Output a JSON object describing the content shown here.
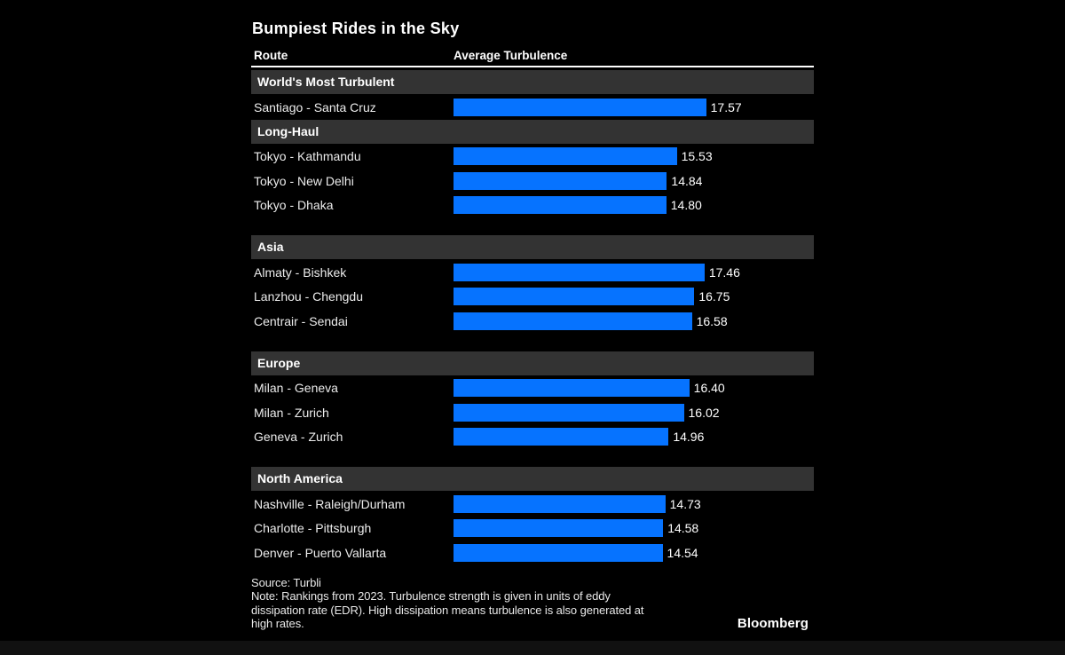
{
  "colors": {
    "background": "#000000",
    "bar": "#0673ff",
    "section_band": "#333333",
    "divider": "#ffffff",
    "text": "#ffffff"
  },
  "chart_data": {
    "type": "bar",
    "orientation": "horizontal",
    "title": "Bumpiest Rides in the Sky",
    "col_route": "Route",
    "col_value": "Average Turbulence",
    "xlabel": "Average Turbulence",
    "ylabel": "Route",
    "xlim": [
      0,
      25
    ],
    "grid": false,
    "legend": "none",
    "bar_color": "#0673ff",
    "sections": [
      {
        "label": "World's Most Turbulent",
        "gap_before": false,
        "rows": [
          {
            "route": "Santiago - Santa Cruz",
            "value": 17.57
          }
        ]
      },
      {
        "label": "Long-Haul",
        "gap_before": false,
        "rows": [
          {
            "route": "Tokyo - Kathmandu",
            "value": 15.53
          },
          {
            "route": "Tokyo - New Delhi",
            "value": 14.84
          },
          {
            "route": "Tokyo - Dhaka",
            "value": 14.8
          }
        ]
      },
      {
        "label": "Asia",
        "gap_before": true,
        "rows": [
          {
            "route": "Almaty - Bishkek",
            "value": 17.46
          },
          {
            "route": "Lanzhou - Chengdu",
            "value": 16.75
          },
          {
            "route": "Centrair - Sendai",
            "value": 16.58
          }
        ]
      },
      {
        "label": "Europe",
        "gap_before": true,
        "rows": [
          {
            "route": "Milan - Geneva",
            "value": 16.4
          },
          {
            "route": "Milan - Zurich",
            "value": 16.02
          },
          {
            "route": "Geneva - Zurich",
            "value": 14.96
          }
        ]
      },
      {
        "label": "North America",
        "gap_before": true,
        "rows": [
          {
            "route": "Nashville - Raleigh/Durham",
            "value": 14.73
          },
          {
            "route": "Charlotte - Pittsburgh",
            "value": 14.58
          },
          {
            "route": "Denver - Puerto Vallarta",
            "value": 14.54
          }
        ]
      }
    ],
    "categories": [
      "Santiago - Santa Cruz",
      "Tokyo - Kathmandu",
      "Tokyo - New Delhi",
      "Tokyo - Dhaka",
      "Almaty - Bishkek",
      "Lanzhou - Chengdu",
      "Centrair - Sendai",
      "Milan - Geneva",
      "Milan - Zurich",
      "Geneva - Zurich",
      "Nashville - Raleigh/Durham",
      "Charlotte - Pittsburgh",
      "Denver - Puerto Vallarta"
    ],
    "values": [
      17.57,
      15.53,
      14.84,
      14.8,
      17.46,
      16.75,
      16.58,
      16.4,
      16.02,
      14.96,
      14.73,
      14.58,
      14.54
    ]
  },
  "footer": {
    "source": "Source: Turbli",
    "note_lines": [
      "Note: Rankings from 2023. Turbulence strength is given in units of eddy",
      "dissipation rate (EDR). High dissipation means turbulence is also generated at",
      "high rates."
    ],
    "brand": "Bloomberg"
  }
}
